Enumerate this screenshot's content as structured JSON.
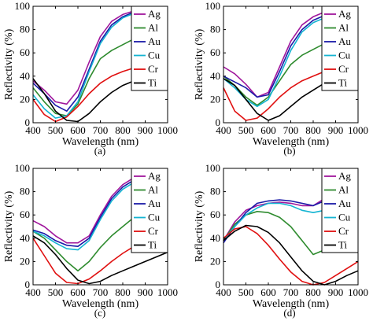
{
  "colors": {
    "Ag": "#a0169c",
    "Al": "#2e8b2e",
    "Au": "#1a1aa8",
    "Cu": "#14b4d2",
    "Cr": "#e01010",
    "Ti": "#000000"
  },
  "chart_data": [
    {
      "type": "line",
      "panel_label": "(a)",
      "xlabel": "Wavelength (nm)",
      "ylabel": "Reflectivity (%)",
      "xlim": [
        400,
        1000
      ],
      "ylim": [
        0,
        100
      ],
      "xticks": [
        400,
        500,
        600,
        700,
        800,
        900,
        1000
      ],
      "yticks": [
        0,
        20,
        40,
        60,
        80,
        100
      ],
      "grid": false,
      "legend_position": "top-right",
      "series": [
        {
          "name": "Ag",
          "x": [
            400,
            450,
            500,
            550,
            600,
            650,
            700,
            750,
            800,
            850,
            900
          ],
          "y": [
            36,
            28,
            18,
            16,
            28,
            52,
            74,
            87,
            93,
            96,
            97
          ]
        },
        {
          "name": "Al",
          "x": [
            400,
            450,
            500,
            550,
            600,
            650,
            700,
            750,
            800,
            850,
            900
          ],
          "y": [
            30,
            18,
            8,
            6,
            16,
            38,
            55,
            62,
            67,
            72,
            78
          ]
        },
        {
          "name": "Au",
          "x": [
            400,
            450,
            500,
            550,
            600,
            650,
            700,
            750,
            800,
            850,
            900
          ],
          "y": [
            34,
            25,
            15,
            10,
            22,
            46,
            70,
            84,
            91,
            95,
            96
          ]
        },
        {
          "name": "Cu",
          "x": [
            400,
            450,
            500,
            550,
            600,
            650,
            700,
            750,
            800,
            850,
            900
          ],
          "y": [
            24,
            12,
            4,
            6,
            18,
            44,
            68,
            82,
            90,
            94,
            96
          ]
        },
        {
          "name": "Cr",
          "x": [
            400,
            450,
            500,
            550,
            600,
            650,
            700,
            750,
            800,
            850,
            900
          ],
          "y": [
            20,
            7,
            1,
            5,
            14,
            25,
            34,
            40,
            44,
            47,
            49
          ]
        },
        {
          "name": "Ti",
          "x": [
            400,
            450,
            500,
            550,
            600,
            650,
            700,
            750,
            800,
            850,
            900
          ],
          "y": [
            38,
            25,
            10,
            2,
            1,
            8,
            18,
            26,
            32,
            36,
            40
          ]
        }
      ]
    },
    {
      "type": "line",
      "panel_label": "(b)",
      "xlabel": "Wavelength (nm)",
      "ylabel": "Reflectivity (%)",
      "xlim": [
        400,
        1000
      ],
      "ylim": [
        0,
        100
      ],
      "xticks": [
        400,
        500,
        600,
        700,
        800,
        900,
        1000
      ],
      "yticks": [
        0,
        20,
        40,
        60,
        80,
        100
      ],
      "grid": false,
      "legend_position": "top-right",
      "series": [
        {
          "name": "Ag",
          "x": [
            400,
            450,
            500,
            550,
            600,
            650,
            700,
            750,
            800,
            850,
            900
          ],
          "y": [
            48,
            42,
            33,
            22,
            26,
            48,
            70,
            84,
            91,
            95,
            96
          ]
        },
        {
          "name": "Al",
          "x": [
            400,
            450,
            500,
            550,
            600,
            650,
            700,
            750,
            800,
            850,
            900
          ],
          "y": [
            40,
            32,
            22,
            15,
            22,
            36,
            50,
            58,
            63,
            68,
            72
          ]
        },
        {
          "name": "Au",
          "x": [
            400,
            450,
            500,
            550,
            600,
            650,
            700,
            750,
            800,
            850,
            900
          ],
          "y": [
            40,
            35,
            30,
            22,
            24,
            44,
            66,
            80,
            88,
            92,
            94
          ]
        },
        {
          "name": "Cu",
          "x": [
            400,
            450,
            500,
            550,
            600,
            650,
            700,
            750,
            800,
            850,
            900
          ],
          "y": [
            38,
            30,
            20,
            14,
            20,
            40,
            62,
            78,
            86,
            90,
            92
          ]
        },
        {
          "name": "Cr",
          "x": [
            400,
            450,
            500,
            550,
            600,
            650,
            700,
            750,
            800,
            850,
            900
          ],
          "y": [
            30,
            10,
            2,
            4,
            12,
            22,
            30,
            36,
            40,
            44,
            46
          ]
        },
        {
          "name": "Ti",
          "x": [
            400,
            450,
            500,
            550,
            600,
            650,
            700,
            750,
            800,
            850,
            900
          ],
          "y": [
            38,
            32,
            20,
            8,
            2,
            6,
            14,
            22,
            28,
            34,
            38
          ]
        }
      ]
    },
    {
      "type": "line",
      "panel_label": "(c)",
      "xlabel": "Wavelength (nm)",
      "ylabel": "Reflectivity (%)",
      "xlim": [
        400,
        1000
      ],
      "ylim": [
        0,
        100
      ],
      "xticks": [
        400,
        500,
        600,
        700,
        800,
        900,
        1000
      ],
      "yticks": [
        0,
        20,
        40,
        60,
        80,
        100
      ],
      "grid": false,
      "legend_position": "top-right",
      "series": [
        {
          "name": "Ag",
          "x": [
            400,
            450,
            500,
            550,
            600,
            650,
            700,
            750,
            800,
            850,
            900
          ],
          "y": [
            55,
            50,
            42,
            36,
            36,
            42,
            60,
            76,
            86,
            92,
            95
          ]
        },
        {
          "name": "Al",
          "x": [
            400,
            450,
            500,
            550,
            600,
            650,
            700,
            750,
            800,
            850,
            900
          ],
          "y": [
            46,
            40,
            30,
            20,
            12,
            20,
            32,
            42,
            50,
            58,
            64
          ]
        },
        {
          "name": "Au",
          "x": [
            400,
            450,
            500,
            550,
            600,
            650,
            700,
            750,
            800,
            850,
            900
          ],
          "y": [
            47,
            44,
            38,
            34,
            33,
            40,
            58,
            74,
            84,
            90,
            92
          ]
        },
        {
          "name": "Cu",
          "x": [
            400,
            450,
            500,
            550,
            600,
            650,
            700,
            750,
            800,
            850,
            900
          ],
          "y": [
            46,
            42,
            36,
            31,
            30,
            38,
            56,
            72,
            82,
            88,
            90
          ]
        },
        {
          "name": "Cr",
          "x": [
            400,
            450,
            500,
            550,
            600,
            650,
            700,
            750,
            800,
            850,
            900,
            950,
            1000
          ],
          "y": [
            40,
            25,
            10,
            2,
            1,
            5,
            12,
            20,
            27,
            33,
            37,
            40,
            42
          ]
        },
        {
          "name": "Ti",
          "x": [
            400,
            450,
            500,
            550,
            600,
            650,
            700,
            750,
            800,
            850,
            900,
            950,
            1000
          ],
          "y": [
            42,
            36,
            26,
            14,
            4,
            1,
            3,
            8,
            12,
            16,
            20,
            24,
            28
          ]
        }
      ]
    },
    {
      "type": "line",
      "panel_label": "(d)",
      "xlabel": "Wavelength (nm)",
      "ylabel": "Reflectivity (%)",
      "xlim": [
        400,
        1000
      ],
      "ylim": [
        0,
        100
      ],
      "xticks": [
        400,
        500,
        600,
        700,
        800,
        900,
        1000
      ],
      "yticks": [
        0,
        20,
        40,
        60,
        80,
        100
      ],
      "grid": false,
      "legend_position": "top-right",
      "series": [
        {
          "name": "Ag",
          "x": [
            400,
            450,
            500,
            550,
            600,
            650,
            700,
            750,
            800,
            850
          ],
          "y": [
            38,
            54,
            64,
            68,
            70,
            71,
            70,
            68,
            68,
            74
          ]
        },
        {
          "name": "Al",
          "x": [
            400,
            450,
            500,
            550,
            600,
            650,
            700,
            750,
            800,
            850
          ],
          "y": [
            38,
            52,
            60,
            63,
            62,
            58,
            50,
            38,
            26,
            30
          ]
        },
        {
          "name": "Au",
          "x": [
            400,
            450,
            500,
            550,
            600,
            650,
            700,
            750,
            800,
            850
          ],
          "y": [
            36,
            50,
            62,
            70,
            72,
            73,
            72,
            70,
            68,
            72
          ]
        },
        {
          "name": "Cu",
          "x": [
            400,
            450,
            500,
            550,
            600,
            650,
            700,
            750,
            800,
            850
          ],
          "y": [
            38,
            50,
            60,
            66,
            70,
            70,
            68,
            64,
            62,
            64
          ]
        },
        {
          "name": "Cr",
          "x": [
            400,
            450,
            500,
            550,
            600,
            650,
            700,
            750,
            800,
            850,
            900,
            950,
            1000
          ],
          "y": [
            40,
            48,
            50,
            44,
            34,
            22,
            11,
            3,
            0,
            2,
            8,
            14,
            20
          ]
        },
        {
          "name": "Ti",
          "x": [
            400,
            450,
            500,
            550,
            600,
            650,
            700,
            750,
            800,
            850,
            900,
            950,
            1000
          ],
          "y": [
            38,
            46,
            51,
            50,
            45,
            36,
            24,
            12,
            3,
            0,
            3,
            8,
            12
          ]
        }
      ]
    }
  ]
}
